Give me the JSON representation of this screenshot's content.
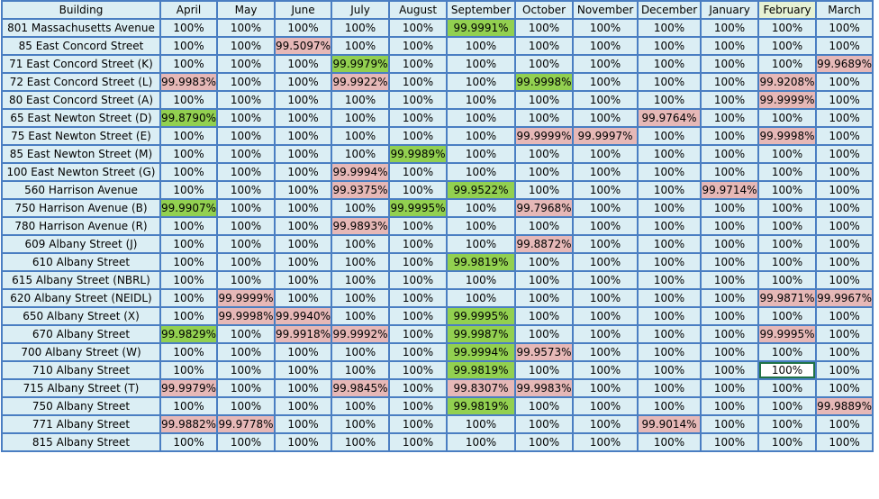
{
  "colors": {
    "cell_bg": "#dbeef4",
    "grid_border": "#4a7ec2",
    "high_highlight": "#92d050",
    "low_highlight": "#e6b8b7",
    "selected_cell_border": "#217346"
  },
  "columns": [
    "Building",
    "April",
    "May",
    "June",
    "July",
    "August",
    "September",
    "October",
    "November",
    "December",
    "January",
    "February",
    "March"
  ],
  "rows": [
    {
      "building": "801 Massachusetts Avenue",
      "values": [
        "100%",
        "100%",
        "100%",
        "100%",
        "100%",
        "99.9991%",
        "100%",
        "100%",
        "100%",
        "100%",
        "100%",
        "100%"
      ],
      "highlight": [
        "",
        "",
        "",
        "",
        "",
        "g",
        "",
        "",
        "",
        "",
        "",
        ""
      ]
    },
    {
      "building": "85 East Concord Street",
      "values": [
        "100%",
        "100%",
        "99.5097%",
        "100%",
        "100%",
        "100%",
        "100%",
        "100%",
        "100%",
        "100%",
        "100%",
        "100%"
      ],
      "highlight": [
        "",
        "",
        "p",
        "",
        "",
        "",
        "",
        "",
        "",
        "",
        "",
        ""
      ]
    },
    {
      "building": "71 East Concord Street (K)",
      "values": [
        "100%",
        "100%",
        "100%",
        "99.9979%",
        "100%",
        "100%",
        "100%",
        "100%",
        "100%",
        "100%",
        "100%",
        "99.9689%"
      ],
      "highlight": [
        "",
        "",
        "",
        "g",
        "",
        "",
        "",
        "",
        "",
        "",
        "",
        "p"
      ]
    },
    {
      "building": "72 East Concord Street (L)",
      "values": [
        "99.9983%",
        "100%",
        "100%",
        "99.9922%",
        "100%",
        "100%",
        "99.9998%",
        "100%",
        "100%",
        "100%",
        "99.9208%",
        "100%"
      ],
      "highlight": [
        "p",
        "",
        "",
        "p",
        "",
        "",
        "g",
        "",
        "",
        "",
        "p",
        ""
      ]
    },
    {
      "building": "80 East Concord Street (A)",
      "values": [
        "100%",
        "100%",
        "100%",
        "100%",
        "100%",
        "100%",
        "100%",
        "100%",
        "100%",
        "100%",
        "99.9999%",
        "100%"
      ],
      "highlight": [
        "",
        "",
        "",
        "",
        "",
        "",
        "",
        "",
        "",
        "",
        "p",
        ""
      ]
    },
    {
      "building": "65 East Newton Street (D)",
      "values": [
        "99.8790%",
        "100%",
        "100%",
        "100%",
        "100%",
        "100%",
        "100%",
        "100%",
        "99.9764%",
        "100%",
        "100%",
        "100%"
      ],
      "highlight": [
        "g",
        "",
        "",
        "",
        "",
        "",
        "",
        "",
        "p",
        "",
        "",
        ""
      ]
    },
    {
      "building": "75 East Newton Street (E)",
      "values": [
        "100%",
        "100%",
        "100%",
        "100%",
        "100%",
        "100%",
        "99.9999%",
        "99.9997%",
        "100%",
        "100%",
        "99.9998%",
        "100%"
      ],
      "highlight": [
        "",
        "",
        "",
        "",
        "",
        "",
        "p",
        "p",
        "",
        "",
        "p",
        ""
      ]
    },
    {
      "building": "85 East Newton Street (M)",
      "values": [
        "100%",
        "100%",
        "100%",
        "100%",
        "99.9989%",
        "100%",
        "100%",
        "100%",
        "100%",
        "100%",
        "100%",
        "100%"
      ],
      "highlight": [
        "",
        "",
        "",
        "",
        "g",
        "",
        "",
        "",
        "",
        "",
        "",
        ""
      ]
    },
    {
      "building": "100 East Newton Street (G)",
      "values": [
        "100%",
        "100%",
        "100%",
        "99.9994%",
        "100%",
        "100%",
        "100%",
        "100%",
        "100%",
        "100%",
        "100%",
        "100%"
      ],
      "highlight": [
        "",
        "",
        "",
        "p",
        "",
        "",
        "",
        "",
        "",
        "",
        "",
        ""
      ]
    },
    {
      "building": "560 Harrison Avenue",
      "values": [
        "100%",
        "100%",
        "100%",
        "99.9375%",
        "100%",
        "99.9522%",
        "100%",
        "100%",
        "100%",
        "99.9714%",
        "100%",
        "100%"
      ],
      "highlight": [
        "",
        "",
        "",
        "p",
        "",
        "g",
        "",
        "",
        "",
        "p",
        "",
        ""
      ]
    },
    {
      "building": "750 Harrison Avenue (B)",
      "values": [
        "99.9907%",
        "100%",
        "100%",
        "100%",
        "99.9995%",
        "100%",
        "99.7968%",
        "100%",
        "100%",
        "100%",
        "100%",
        "100%"
      ],
      "highlight": [
        "g",
        "",
        "",
        "",
        "g",
        "",
        "p",
        "",
        "",
        "",
        "",
        ""
      ]
    },
    {
      "building": "780 Harrison Avenue (R)",
      "values": [
        "100%",
        "100%",
        "100%",
        "99.9893%",
        "100%",
        "100%",
        "100%",
        "100%",
        "100%",
        "100%",
        "100%",
        "100%"
      ],
      "highlight": [
        "",
        "",
        "",
        "p",
        "",
        "",
        "",
        "",
        "",
        "",
        "",
        ""
      ]
    },
    {
      "building": "609 Albany Street (J)",
      "values": [
        "100%",
        "100%",
        "100%",
        "100%",
        "100%",
        "100%",
        "99.8872%",
        "100%",
        "100%",
        "100%",
        "100%",
        "100%"
      ],
      "highlight": [
        "",
        "",
        "",
        "",
        "",
        "",
        "p",
        "",
        "",
        "",
        "",
        ""
      ]
    },
    {
      "building": "610 Albany Street",
      "values": [
        "100%",
        "100%",
        "100%",
        "100%",
        "100%",
        "99.9819%",
        "100%",
        "100%",
        "100%",
        "100%",
        "100%",
        "100%"
      ],
      "highlight": [
        "",
        "",
        "",
        "",
        "",
        "g",
        "",
        "",
        "",
        "",
        "",
        ""
      ]
    },
    {
      "building": "615 Albany Street (NBRL)",
      "values": [
        "100%",
        "100%",
        "100%",
        "100%",
        "100%",
        "100%",
        "100%",
        "100%",
        "100%",
        "100%",
        "100%",
        "100%"
      ],
      "highlight": [
        "",
        "",
        "",
        "",
        "",
        "",
        "",
        "",
        "",
        "",
        "",
        ""
      ]
    },
    {
      "building": "620 Albany Street (NEIDL)",
      "values": [
        "100%",
        "99.9999%",
        "100%",
        "100%",
        "100%",
        "100%",
        "100%",
        "100%",
        "100%",
        "100%",
        "99.9871%",
        "99.9967%"
      ],
      "highlight": [
        "",
        "p",
        "",
        "",
        "",
        "",
        "",
        "",
        "",
        "",
        "p",
        "p"
      ]
    },
    {
      "building": "650 Albany Street (X)",
      "values": [
        "100%",
        "99.9998%",
        "99.9940%",
        "100%",
        "100%",
        "99.9995%",
        "100%",
        "100%",
        "100%",
        "100%",
        "100%",
        "100%"
      ],
      "highlight": [
        "",
        "p",
        "p",
        "",
        "",
        "g",
        "",
        "",
        "",
        "",
        "",
        ""
      ]
    },
    {
      "building": "670 Albany Street",
      "values": [
        "99.9829%",
        "100%",
        "99.9918%",
        "99.9992%",
        "100%",
        "99.9987%",
        "100%",
        "100%",
        "100%",
        "100%",
        "99.9995%",
        "100%"
      ],
      "highlight": [
        "g",
        "",
        "p",
        "p",
        "",
        "g",
        "",
        "",
        "",
        "",
        "p",
        ""
      ]
    },
    {
      "building": "700 Albany Street (W)",
      "values": [
        "100%",
        "100%",
        "100%",
        "100%",
        "100%",
        "99.9994%",
        "99.9573%",
        "100%",
        "100%",
        "100%",
        "100%",
        "100%"
      ],
      "highlight": [
        "",
        "",
        "",
        "",
        "",
        "g",
        "p",
        "",
        "",
        "",
        "",
        ""
      ]
    },
    {
      "building": "710 Albany Street",
      "values": [
        "100%",
        "100%",
        "100%",
        "100%",
        "100%",
        "99.9819%",
        "100%",
        "100%",
        "100%",
        "100%",
        "100%",
        "100%"
      ],
      "highlight": [
        "",
        "",
        "",
        "",
        "",
        "g",
        "",
        "",
        "",
        "",
        "sel",
        ""
      ]
    },
    {
      "building": "715 Albany Street (T)",
      "values": [
        "99.9979%",
        "100%",
        "100%",
        "99.9845%",
        "100%",
        "99.8307%",
        "99.9983%",
        "100%",
        "100%",
        "100%",
        "100%",
        "100%"
      ],
      "highlight": [
        "p",
        "",
        "",
        "p",
        "",
        "p",
        "p",
        "",
        "",
        "",
        "",
        ""
      ]
    },
    {
      "building": "750 Albany Street",
      "values": [
        "100%",
        "100%",
        "100%",
        "100%",
        "100%",
        "99.9819%",
        "100%",
        "100%",
        "100%",
        "100%",
        "100%",
        "99.9889%"
      ],
      "highlight": [
        "",
        "",
        "",
        "",
        "",
        "g",
        "",
        "",
        "",
        "",
        "",
        "p"
      ]
    },
    {
      "building": "771 Albany Street",
      "values": [
        "99.9882%",
        "99.9778%",
        "100%",
        "100%",
        "100%",
        "100%",
        "100%",
        "100%",
        "99.9014%",
        "100%",
        "100%",
        "100%"
      ],
      "highlight": [
        "p",
        "p",
        "",
        "",
        "",
        "",
        "",
        "",
        "p",
        "",
        "",
        ""
      ]
    },
    {
      "building": "815 Albany Street",
      "values": [
        "100%",
        "100%",
        "100%",
        "100%",
        "100%",
        "100%",
        "100%",
        "100%",
        "100%",
        "100%",
        "100%",
        "100%"
      ],
      "highlight": [
        "",
        "",
        "",
        "",
        "",
        "",
        "",
        "",
        "",
        "",
        "",
        ""
      ]
    }
  ]
}
